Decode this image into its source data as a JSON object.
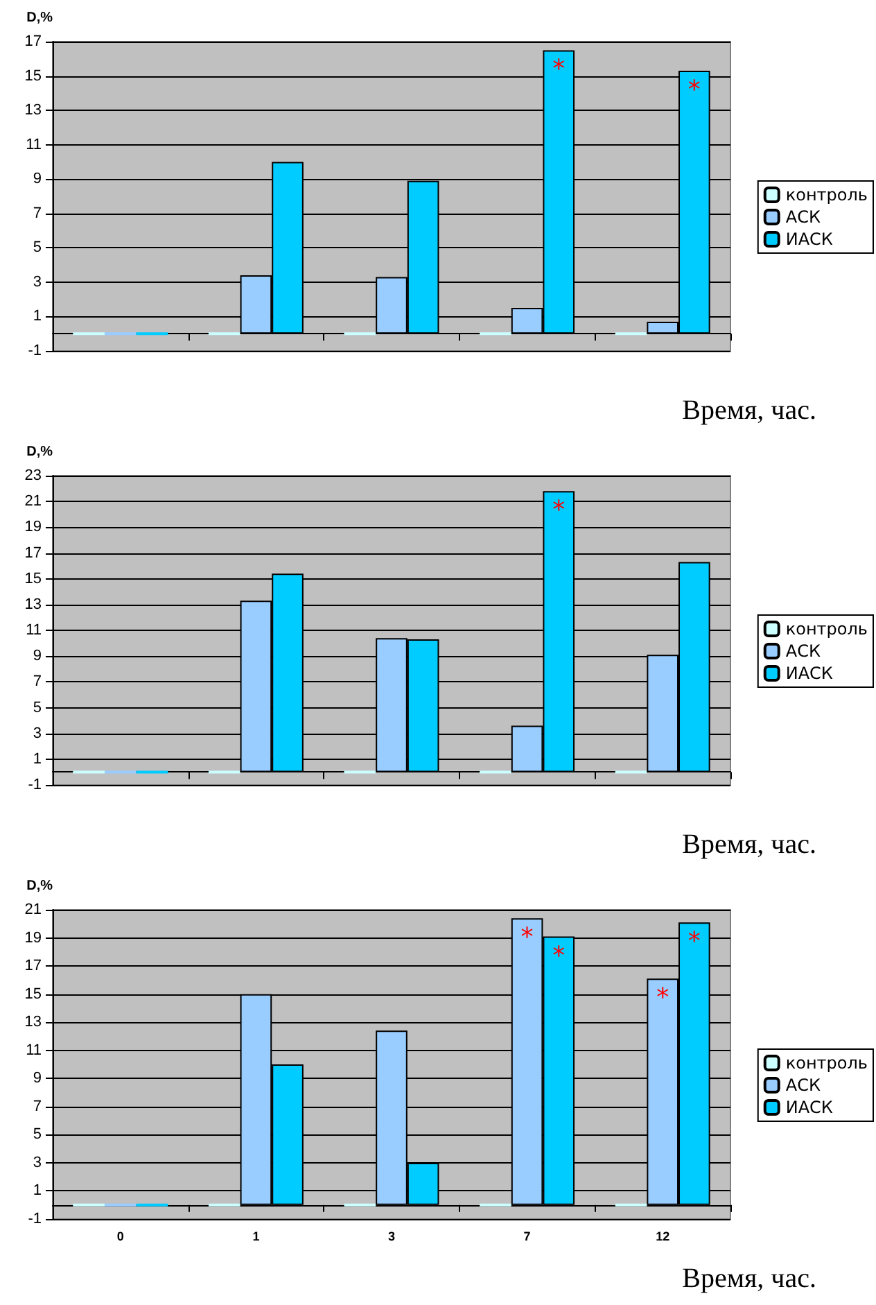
{
  "chart_data": [
    {
      "type": "bar",
      "ylabel": "D,%",
      "xlabel": "Время, час.",
      "categories": [
        null,
        null,
        null,
        null,
        null
      ],
      "ylim": [
        -1,
        17
      ],
      "yticks": [
        -1,
        1,
        3,
        5,
        7,
        9,
        11,
        13,
        15,
        17
      ],
      "grid": "y",
      "legend": "right",
      "series": [
        {
          "name": "контроль",
          "color": "#ccffff",
          "values": [
            0,
            0,
            0,
            0,
            0
          ]
        },
        {
          "name": "АСК",
          "color": "#99ccff",
          "values": [
            0,
            3.4,
            3.3,
            1.5,
            0.7
          ]
        },
        {
          "name": "ИАСК",
          "color": "#00ccff",
          "values": [
            0,
            10,
            8.9,
            16.5,
            15.3
          ],
          "value_labels": [
            null,
            null,
            null,
            "*",
            "*"
          ]
        }
      ]
    },
    {
      "type": "bar",
      "ylabel": "D,%",
      "xlabel": "Время, час.",
      "categories": [
        null,
        null,
        null,
        null,
        null
      ],
      "ylim": [
        -1,
        23
      ],
      "yticks": [
        -1,
        1,
        3,
        5,
        7,
        9,
        11,
        13,
        15,
        17,
        19,
        21,
        23
      ],
      "grid": "y",
      "legend": "right",
      "series": [
        {
          "name": "контроль",
          "color": "#ccffff",
          "values": [
            0,
            0,
            0,
            0,
            0
          ]
        },
        {
          "name": "АСК",
          "color": "#99ccff",
          "values": [
            0,
            13.3,
            10.4,
            3.6,
            9.1
          ]
        },
        {
          "name": "ИАСК",
          "color": "#00ccff",
          "values": [
            0,
            15.4,
            10.3,
            21.8,
            16.3
          ],
          "value_labels": [
            null,
            null,
            null,
            "*",
            null
          ]
        }
      ]
    },
    {
      "type": "bar",
      "ylabel": "D,%",
      "xlabel": "Время, час.",
      "categories": [
        "0",
        "1",
        "3",
        "7",
        "12"
      ],
      "ylim": [
        -1,
        21
      ],
      "yticks": [
        -1,
        1,
        3,
        5,
        7,
        9,
        11,
        13,
        15,
        17,
        19,
        21
      ],
      "grid": "y",
      "legend": "right",
      "series": [
        {
          "name": "контроль",
          "color": "#ccffff",
          "values": [
            0,
            0,
            0,
            0,
            0
          ]
        },
        {
          "name": "АСК",
          "color": "#99ccff",
          "values": [
            0,
            15,
            12.4,
            20.4,
            16.1
          ],
          "value_labels": [
            null,
            null,
            null,
            "*",
            "*"
          ]
        },
        {
          "name": "ИАСК",
          "color": "#00ccff",
          "values": [
            0,
            10,
            3,
            19.1,
            20.1
          ],
          "value_labels": [
            null,
            null,
            null,
            "*",
            "*"
          ]
        }
      ]
    }
  ]
}
